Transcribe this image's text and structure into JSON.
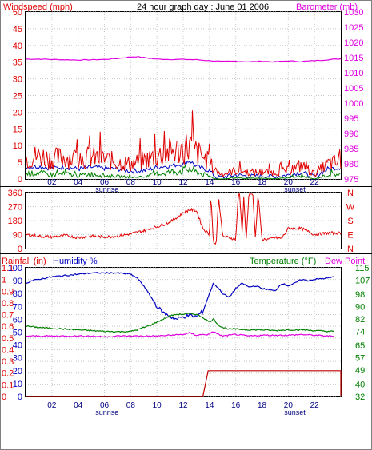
{
  "header": {
    "title": "24 hour graph day : June 01 2006",
    "left_label": "Windspeed (mph)",
    "right_label": "Barometer (mb)"
  },
  "colors": {
    "red": "#e00000",
    "blue": "#0000c0",
    "green": "#008000",
    "magenta": "#e000e0",
    "darkred": "#c00000",
    "grid": "#c8c8c8",
    "frame": "#000000"
  },
  "labels": {
    "sunrise": "sunrise",
    "sunset": "sunset",
    "rain_label": "Rainfall (in)",
    "humidity_label": "Humidity %",
    "temp_label": "Temperature (°F)",
    "dew_label": "Dew Point",
    "dir_letters": [
      "N",
      "W",
      "S",
      "E",
      "N"
    ]
  },
  "chart_data": [
    {
      "type": "line",
      "title": "24 hour graph day : June 01 2006",
      "xlabel": "",
      "x_ticks": [
        "02",
        "04",
        "06",
        "08",
        "10",
        "12",
        "14",
        "16",
        "18",
        "20",
        "22"
      ],
      "xlim": [
        0,
        24
      ],
      "annotations": [
        {
          "x": 6.2,
          "text": "sunrise"
        },
        {
          "x": 20.5,
          "text": "sunset"
        }
      ],
      "left_axis": {
        "label": "Windspeed (mph)",
        "ylim": [
          0,
          50
        ],
        "ticks": [
          0,
          5,
          10,
          15,
          20,
          25,
          30,
          35,
          40,
          45,
          50
        ]
      },
      "right_axis": {
        "label": "Barometer (mb)",
        "ylim": [
          975,
          1030
        ],
        "ticks": [
          975,
          980,
          985,
          990,
          995,
          1000,
          1005,
          1010,
          1015,
          1020,
          1025,
          1030
        ]
      },
      "series": [
        {
          "axis": "right",
          "color": "#e000e0",
          "x": [
            0,
            1,
            2,
            3,
            4,
            5,
            6,
            7,
            8,
            8.5,
            9,
            10,
            11,
            12,
            13,
            14,
            15,
            16,
            17,
            18,
            19,
            20,
            21,
            22,
            23,
            24
          ],
          "values": [
            1014.5,
            1014.5,
            1014.4,
            1014.3,
            1014.2,
            1014.3,
            1014.4,
            1014.7,
            1015.2,
            1015.3,
            1015.0,
            1014.5,
            1014.4,
            1014.4,
            1014.3,
            1014.0,
            1013.7,
            1013.8,
            1013.6,
            1013.8,
            1013.6,
            1013.9,
            1013.7,
            1014.0,
            1014.3,
            1014.6
          ]
        },
        {
          "axis": "left",
          "color": "#0000c0",
          "x": [
            0,
            1,
            2,
            3,
            4,
            5,
            6,
            7,
            8,
            9,
            10,
            11,
            12,
            12.5,
            13,
            14,
            14.5,
            15,
            16,
            17,
            18,
            19,
            20,
            21,
            22,
            23,
            24
          ],
          "values": [
            3.5,
            3.8,
            3.2,
            3.6,
            3.0,
            3.5,
            3.2,
            3.0,
            2.4,
            2.5,
            3.5,
            4.0,
            4.5,
            5.5,
            3.8,
            2.5,
            0.5,
            0.5,
            1.2,
            0.8,
            1.0,
            0.7,
            1.2,
            2.0,
            0.6,
            3.0,
            3.5
          ]
        },
        {
          "axis": "left",
          "color": "#e00000",
          "note_render": "gusty",
          "x": [
            0,
            1,
            2,
            3,
            4,
            5,
            6,
            7,
            8,
            9,
            10,
            11,
            12,
            12.5,
            13,
            14,
            14.5,
            15,
            16,
            17,
            18,
            19,
            20,
            21,
            22,
            23,
            24
          ],
          "values": [
            6,
            7,
            6,
            6.5,
            6,
            6.5,
            6,
            5,
            4.5,
            5.5,
            7,
            8,
            9,
            10,
            8,
            5,
            2,
            1.5,
            2.5,
            2,
            2,
            2,
            2.5,
            4,
            1.5,
            4.5,
            5
          ]
        },
        {
          "axis": "left",
          "color": "#008000",
          "note_render": "gusty",
          "x": [
            0,
            1,
            2,
            3,
            4,
            5,
            6,
            7,
            8,
            9,
            10,
            11,
            12,
            12.5,
            13,
            14,
            14.5,
            15,
            16,
            17,
            18,
            19,
            20,
            21,
            22,
            23,
            24
          ],
          "values": [
            1.5,
            1.8,
            1.2,
            1.5,
            1.0,
            1.5,
            1.0,
            0.8,
            0.5,
            0.6,
            1.5,
            2.0,
            2.5,
            3.0,
            2.0,
            0.8,
            0,
            0,
            0.3,
            0.2,
            0.2,
            0.1,
            0.4,
            0.8,
            0,
            1.2,
            1.5
          ]
        }
      ]
    },
    {
      "type": "line",
      "title": "",
      "x_ticks": [],
      "xlim": [
        0,
        24
      ],
      "left_axis": {
        "label": "",
        "ylim": [
          0,
          360
        ],
        "ticks": [
          0,
          90,
          180,
          270,
          360
        ]
      },
      "right_axis": {
        "label": "",
        "ticks_text": [
          "N",
          "W",
          "S",
          "E",
          "N"
        ]
      },
      "series": [
        {
          "color": "#e00000",
          "x": [
            0,
            1,
            2,
            3,
            4,
            5,
            6,
            7,
            8,
            9,
            10,
            11,
            11.5,
            12,
            12.5,
            13,
            13.2,
            13.5,
            14,
            14.1,
            14.3,
            14.5,
            14.7,
            15,
            15.5,
            16,
            16.2,
            16.3,
            16.5,
            16.6,
            16.8,
            17,
            17.3,
            17.5,
            17.7,
            18,
            18.5,
            19,
            19.5,
            20,
            20.5,
            21,
            21.5,
            22,
            22.5,
            23,
            24
          ],
          "values": [
            90,
            80,
            75,
            85,
            70,
            80,
            75,
            80,
            95,
            115,
            140,
            170,
            200,
            230,
            250,
            245,
            200,
            130,
            90,
            350,
            40,
            20,
            330,
            80,
            70,
            60,
            350,
            350,
            80,
            350,
            60,
            350,
            350,
            60,
            350,
            60,
            60,
            70,
            65,
            130,
            130,
            130,
            110,
            90,
            95,
            100,
            100
          ]
        }
      ]
    },
    {
      "type": "line",
      "title": "",
      "xlabel": "",
      "x_ticks": [
        "02",
        "04",
        "06",
        "08",
        "10",
        "12",
        "14",
        "16",
        "18",
        "20",
        "22"
      ],
      "xlim": [
        0,
        24
      ],
      "annotations": [
        {
          "x": 6.2,
          "text": "sunrise"
        },
        {
          "x": 20.5,
          "text": "sunset"
        }
      ],
      "left_axis_rain": {
        "label": "Rainfall (in)",
        "ylim": [
          0,
          1.1
        ],
        "ticks": [
          0,
          0.1,
          0.2,
          0.3,
          0.4,
          0.5,
          0.6,
          0.7,
          0.8,
          0.9,
          1,
          1.1
        ]
      },
      "left_axis_humidity": {
        "label": "Humidity %",
        "ylim": [
          0,
          100
        ],
        "ticks": [
          0,
          10,
          20,
          30,
          40,
          50,
          60,
          70,
          80,
          90,
          100
        ]
      },
      "right_axis": {
        "label": "Temperature (°F)",
        "ylim": [
          32,
          115
        ],
        "ticks": [
          32,
          40,
          49,
          57,
          65,
          74,
          82,
          90,
          98,
          107,
          115
        ]
      },
      "series": [
        {
          "name": "Humidity %",
          "axis": "humidity",
          "color": "#0000c0",
          "x": [
            0,
            0.5,
            1,
            2,
            3,
            4,
            5,
            6,
            7,
            7.5,
            8,
            8.5,
            9,
            9.5,
            10,
            10.5,
            11,
            11.5,
            12,
            12.5,
            13,
            13.5,
            14,
            14.3,
            14.7,
            15,
            15.5,
            16,
            16.5,
            17,
            17.5,
            18,
            18.5,
            19,
            19.5,
            20,
            20.5,
            21,
            21.5,
            22,
            23,
            23.5
          ],
          "values": [
            88,
            90,
            91,
            93,
            94,
            95,
            96,
            96,
            96,
            95.5,
            95,
            92,
            86,
            78,
            70,
            65,
            62,
            60,
            62,
            63,
            62,
            66,
            80,
            88,
            84,
            80,
            77,
            84,
            88,
            85,
            86,
            84,
            83,
            82,
            88,
            86,
            88,
            91,
            90,
            91,
            92,
            93
          ]
        },
        {
          "name": "Temperature (°F)",
          "axis": "temp",
          "color": "#008000",
          "x": [
            0,
            1,
            2,
            3,
            4,
            5,
            6,
            7,
            8,
            8.5,
            9,
            9.5,
            10,
            10.5,
            11,
            11.5,
            12,
            12.5,
            13,
            13.5,
            14,
            14.3,
            14.7,
            15,
            15.5,
            16,
            17,
            18,
            19,
            20,
            21,
            22,
            23,
            23.5
          ],
          "values": [
            77.5,
            76.5,
            76,
            75.5,
            75,
            74.5,
            74,
            73.8,
            74,
            75,
            76.5,
            78,
            80,
            82,
            84,
            85,
            85,
            85.5,
            85,
            83,
            80,
            82,
            78,
            76.5,
            75.5,
            75.5,
            75,
            75,
            74.5,
            75,
            75,
            74.5,
            74,
            74
          ]
        },
        {
          "name": "Dew Point",
          "axis": "temp",
          "color": "#e000e0",
          "x": [
            0,
            1,
            2,
            3,
            4,
            5,
            6,
            7,
            8,
            9,
            10,
            11,
            12,
            12.5,
            13,
            13.5,
            14,
            14.3,
            14.7,
            15,
            16,
            17,
            18,
            19,
            20,
            21,
            22,
            23,
            23.5
          ],
          "values": [
            71,
            71,
            71,
            71,
            71,
            71,
            70.5,
            71,
            71,
            71,
            71,
            71.5,
            72,
            73,
            71.5,
            72,
            72,
            74,
            72,
            71,
            72,
            71,
            71.5,
            71.5,
            71.5,
            72,
            71.5,
            71,
            71
          ]
        },
        {
          "name": "Rainfall (in)",
          "axis": "rain",
          "color": "#c00000",
          "x": [
            0,
            13.5,
            13.9,
            24
          ],
          "values": [
            0,
            0,
            0.22,
            0.22
          ]
        }
      ]
    }
  ]
}
